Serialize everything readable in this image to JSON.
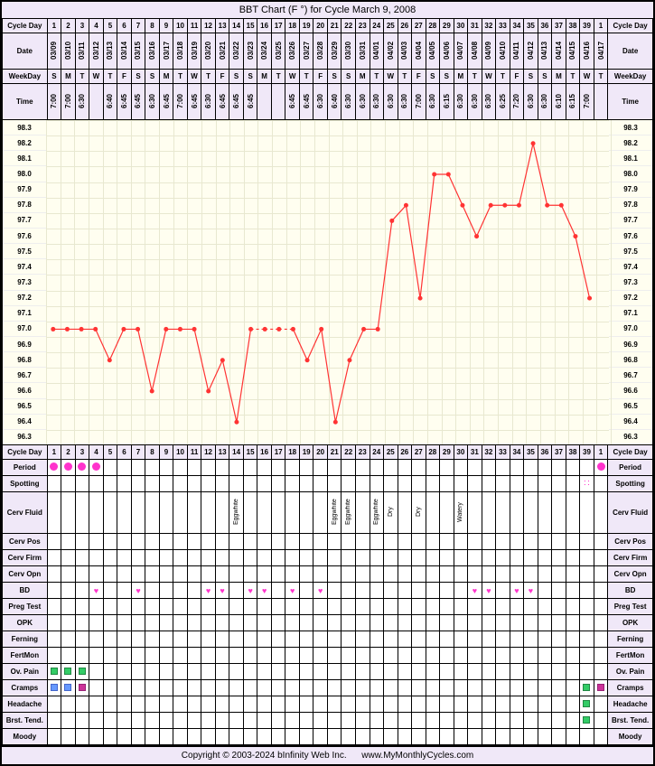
{
  "title": "BBT Chart (F °) for Cycle March 9, 2008",
  "labels": {
    "cycleDay": "Cycle Day",
    "date": "Date",
    "weekday": "WeekDay",
    "time": "Time",
    "period": "Period",
    "spotting": "Spotting",
    "cervFluid": "Cerv Fluid",
    "cervPos": "Cerv Pos",
    "cervFirm": "Cerv Firm",
    "cervOpn": "Cerv Opn",
    "bd": "BD",
    "pregTest": "Preg Test",
    "opk": "OPK",
    "ferning": "Ferning",
    "fertMon": "FertMon",
    "ovPain": "Ov. Pain",
    "cramps": "Cramps",
    "headache": "Headache",
    "brstTend": "Brst. Tend.",
    "moody": "Moody"
  },
  "cycleDays": [
    1,
    2,
    3,
    4,
    5,
    6,
    7,
    8,
    9,
    10,
    11,
    12,
    13,
    14,
    15,
    16,
    17,
    18,
    19,
    20,
    21,
    22,
    23,
    24,
    25,
    26,
    27,
    28,
    29,
    30,
    31,
    32,
    33,
    34,
    35,
    36,
    37,
    38,
    39,
    1
  ],
  "dates": [
    "03/09",
    "03/10",
    "03/11",
    "03/12",
    "03/13",
    "03/14",
    "03/15",
    "03/16",
    "03/17",
    "03/18",
    "03/19",
    "03/20",
    "03/21",
    "03/22",
    "03/23",
    "03/24",
    "03/25",
    "03/26",
    "03/27",
    "03/28",
    "03/29",
    "03/30",
    "03/31",
    "04/01",
    "04/02",
    "04/03",
    "04/04",
    "04/05",
    "04/06",
    "04/07",
    "04/08",
    "04/09",
    "04/10",
    "04/11",
    "04/12",
    "04/13",
    "04/14",
    "04/15",
    "04/16",
    "04/17"
  ],
  "weekdays": [
    "S",
    "M",
    "T",
    "W",
    "T",
    "F",
    "S",
    "S",
    "M",
    "T",
    "W",
    "T",
    "F",
    "S",
    "S",
    "M",
    "T",
    "W",
    "T",
    "F",
    "S",
    "S",
    "M",
    "T",
    "W",
    "T",
    "F",
    "S",
    "S",
    "M",
    "T",
    "W",
    "T",
    "F",
    "S",
    "S",
    "M",
    "T",
    "W",
    "T"
  ],
  "weekendIdx": [
    0,
    6,
    7,
    13,
    14,
    20,
    21,
    27,
    28,
    34,
    35
  ],
  "times": [
    "7:00",
    "7:00",
    "6:30",
    "",
    "6:40",
    "6:45",
    "6:45",
    "6:30",
    "6:45",
    "7:00",
    "6:45",
    "6:30",
    "6:45",
    "6:45",
    "6:45",
    "",
    "",
    "6:45",
    "6:45",
    "6:30",
    "6:40",
    "6:30",
    "6:30",
    "6:30",
    "6:30",
    "6:30",
    "7:00",
    "6:30",
    "6:15",
    "6:30",
    "6:30",
    "6:30",
    "6:25",
    "7:20",
    "6:30",
    "6:30",
    "6:10",
    "6:15",
    "7:00",
    ""
  ],
  "yAxis": {
    "min": 96.3,
    "max": 98.3,
    "step": 0.1,
    "labels": [
      "98.3",
      "98.2",
      "98.1",
      "98.0",
      "97.9",
      "97.8",
      "97.7",
      "97.6",
      "97.5",
      "97.4",
      "97.3",
      "97.2",
      "97.1",
      "97.0",
      "96.9",
      "96.8",
      "96.7",
      "96.6",
      "96.5",
      "96.4",
      "96.3"
    ]
  },
  "temps": [
    97.0,
    97.0,
    97.0,
    97.0,
    96.8,
    97.0,
    97.0,
    96.6,
    97.0,
    97.0,
    97.0,
    96.6,
    96.8,
    96.4,
    97.0,
    97.0,
    97.0,
    97.0,
    96.8,
    97.0,
    96.4,
    96.8,
    97.0,
    97.0,
    97.7,
    97.8,
    97.2,
    98.0,
    98.0,
    97.8,
    97.6,
    97.8,
    97.8,
    97.8,
    98.2,
    97.8,
    97.8,
    97.6,
    97.2,
    null
  ],
  "tempDashed": [
    15,
    16
  ],
  "lineColor": "#ff3333",
  "markerColor": "#ff3333",
  "chartBg": "#fffef0",
  "gridColor": "#e8e8d0",
  "period": [
    0,
    1,
    2,
    3,
    39
  ],
  "spotting": [
    38
  ],
  "cervFluid": {
    "13": "Eggwhite",
    "20": "Eggwhite",
    "21": "Eggwhite",
    "23": "Eggwhite",
    "24": "Dry",
    "26": "Dry",
    "29": "Watery"
  },
  "bd": [
    3,
    6,
    11,
    12,
    14,
    15,
    17,
    19,
    30,
    31,
    33,
    34
  ],
  "ovPain": {
    "0": "green",
    "1": "green",
    "2": "green"
  },
  "cramps": {
    "0": "blue",
    "1": "blue",
    "2": "mag",
    "38": "green",
    "39": "mag"
  },
  "headache": {
    "38": "green"
  },
  "brstTend": {
    "38": "green"
  },
  "footer_left": "Copyright © 2003-2024 bInfinity Web Inc.",
  "footer_right": "www.MyMonthlyCycles.com"
}
